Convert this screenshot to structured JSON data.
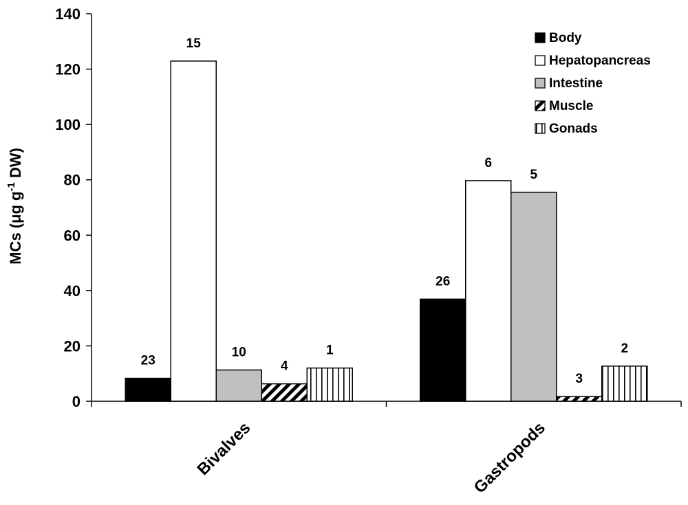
{
  "chart_data": {
    "type": "bar",
    "categories": [
      "Bivalves",
      "Gastropods"
    ],
    "ylabel_parts": [
      "MCs (",
      "μ",
      "g g",
      "-1",
      " DW)"
    ],
    "ylim": [
      0,
      140
    ],
    "yticks": [
      0,
      20,
      40,
      60,
      80,
      100,
      120,
      140
    ],
    "legend_position": "top-right",
    "grid": false,
    "series": [
      {
        "name": "Body",
        "values": [
          8.3,
          36.9
        ],
        "labels": [
          "23",
          "26"
        ],
        "color": "#000000",
        "pattern": "solid-black"
      },
      {
        "name": "Hepatopancreas",
        "values": [
          122.9,
          79.7
        ],
        "labels": [
          "15",
          "6"
        ],
        "color": "#ffffff",
        "pattern": "solid-white"
      },
      {
        "name": "Intestine",
        "values": [
          11.3,
          75.5
        ],
        "labels": [
          "10",
          "5"
        ],
        "color": "#c0c0c0",
        "pattern": "solid-gray"
      },
      {
        "name": "Muscle",
        "values": [
          6.3,
          1.7
        ],
        "labels": [
          "4",
          "3"
        ],
        "color": "#000000",
        "pattern": "diagonal"
      },
      {
        "name": "Gonads",
        "values": [
          12.0,
          12.7
        ],
        "labels": [
          "1",
          "2"
        ],
        "color": "#000000",
        "pattern": "vertical"
      }
    ]
  }
}
